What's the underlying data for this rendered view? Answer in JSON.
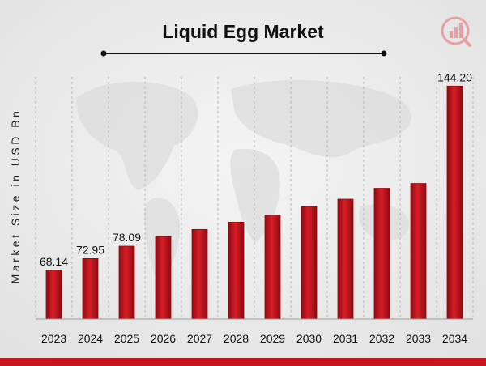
{
  "chart_data": {
    "type": "bar",
    "title": "Liquid Egg Market",
    "xlabel": "",
    "ylabel": "Market Size in USD Bn",
    "categories": [
      "2023",
      "2024",
      "2025",
      "2026",
      "2027",
      "2028",
      "2029",
      "2030",
      "2031",
      "2032",
      "2033",
      "2034"
    ],
    "values": [
      68.14,
      72.95,
      78.09,
      82.0,
      85.0,
      88.0,
      91.0,
      94.5,
      97.5,
      102.0,
      104.0,
      144.2
    ],
    "data_labels": [
      "68.14",
      "72.95",
      "78.09",
      "",
      "",
      "",
      "",
      "",
      "",
      "",
      "",
      "144.20"
    ],
    "ylim": [
      48,
      148
    ],
    "grid": "vertical dashed",
    "legend": "none",
    "bar_color": "#c8141e",
    "bar_color_dark": "#8e0a10"
  },
  "icons": {
    "logo": "market-research-logo-icon"
  },
  "colors": {
    "accent_band": "#c8141e"
  }
}
